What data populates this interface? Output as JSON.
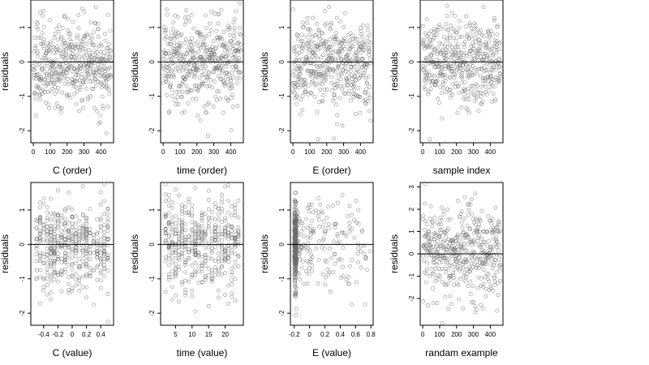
{
  "chart_data": [
    {
      "type": "scatter",
      "xlabel": "C (order)",
      "ylabel": "residuals",
      "xlim": [
        -15,
        475
      ],
      "ylim": [
        -2.35,
        1.8
      ],
      "xticks": [
        0,
        100,
        200,
        300,
        400
      ],
      "yticks": [
        -2,
        -1,
        0,
        1
      ],
      "hline": 0,
      "point_color": "#6b6b6b",
      "gen": {
        "mode": "order",
        "n": 460,
        "x_max": 460,
        "seed": 11
      }
    },
    {
      "type": "scatter",
      "xlabel": "time (order)",
      "ylabel": "residuals",
      "xlim": [
        -15,
        475
      ],
      "ylim": [
        -2.35,
        1.8
      ],
      "xticks": [
        0,
        100,
        200,
        300,
        400
      ],
      "yticks": [
        -2,
        -1,
        0,
        1
      ],
      "hline": 0,
      "point_color": "#6b6b6b",
      "gen": {
        "mode": "order",
        "n": 460,
        "x_max": 460,
        "seed": 23
      }
    },
    {
      "type": "scatter",
      "xlabel": "E (order)",
      "ylabel": "residuals",
      "xlim": [
        -15,
        475
      ],
      "ylim": [
        -2.35,
        1.8
      ],
      "xticks": [
        0,
        100,
        200,
        300,
        400
      ],
      "yticks": [
        -2,
        -1,
        0,
        1
      ],
      "hline": 0,
      "point_color": "#6b6b6b",
      "gen": {
        "mode": "order",
        "n": 460,
        "x_max": 460,
        "seed": 37
      }
    },
    {
      "type": "scatter",
      "xlabel": "sample index",
      "ylabel": "residuals",
      "xlim": [
        -15,
        475
      ],
      "ylim": [
        -2.35,
        1.8
      ],
      "xticks": [
        0,
        100,
        200,
        300,
        400
      ],
      "yticks": [
        -2,
        -1,
        0,
        1
      ],
      "hline": 0,
      "point_color": "#6b6b6b",
      "gen": {
        "mode": "order",
        "n": 460,
        "x_max": 460,
        "seed": 41
      }
    },
    {
      "type": "scatter",
      "xlabel": "C (value)",
      "ylabel": "residuals",
      "xlim": [
        -0.58,
        0.58
      ],
      "ylim": [
        -2.35,
        1.8
      ],
      "xticks": [
        -0.4,
        -0.2,
        0.0,
        0.2,
        0.4
      ],
      "yticks": [
        -2,
        -1,
        0,
        1
      ],
      "hline": 0,
      "point_color": "#6b6b6b",
      "gen": {
        "mode": "columns",
        "n": 460,
        "columns": [
          -0.5,
          -0.45,
          -0.4,
          -0.35,
          -0.3,
          -0.25,
          -0.2,
          -0.15,
          -0.1,
          -0.05,
          0.0,
          0.05,
          0.1,
          0.15,
          0.2,
          0.25,
          0.3,
          0.35,
          0.4,
          0.45,
          0.5
        ],
        "seed": 53
      }
    },
    {
      "type": "scatter",
      "xlabel": "time (value)",
      "ylabel": "residuals",
      "xlim": [
        0.5,
        25.5
      ],
      "ylim": [
        -2.35,
        1.8
      ],
      "xticks": [
        5,
        10,
        15,
        20
      ],
      "yticks": [
        -2,
        -1,
        0,
        1
      ],
      "hline": 0,
      "point_color": "#6b6b6b",
      "gen": {
        "mode": "columns",
        "n": 460,
        "columns": [
          2,
          3,
          4,
          5,
          6,
          7,
          8,
          9,
          10,
          11,
          12,
          13,
          14,
          15,
          16,
          17,
          18,
          19,
          20,
          21,
          22,
          23,
          24
        ],
        "seed": 67
      }
    },
    {
      "type": "scatter",
      "xlabel": "E (value)",
      "ylabel": "residuals",
      "xlim": [
        -0.25,
        0.83
      ],
      "ylim": [
        -2.35,
        1.8
      ],
      "xticks": [
        -0.2,
        0.0,
        0.2,
        0.4,
        0.6,
        0.8
      ],
      "yticks": [
        -2,
        -1,
        0,
        1
      ],
      "hline": 0,
      "point_color": "#6b6b6b",
      "gen": {
        "mode": "skewed",
        "n": 460,
        "x_min": -0.2,
        "x_max": 0.8,
        "seed": 79
      }
    },
    {
      "type": "scatter",
      "xlabel": "randam example",
      "ylabel": "residuals",
      "xlim": [
        -15,
        475
      ],
      "ylim": [
        -3.2,
        3.2
      ],
      "xticks": [
        0,
        100,
        200,
        300,
        400
      ],
      "yticks": [
        -2,
        -1,
        0,
        1,
        2,
        3
      ],
      "hline": 0,
      "point_color": "#6b6b6b",
      "gen": {
        "mode": "random",
        "n": 460,
        "x_max": 460,
        "seed": 97
      }
    }
  ]
}
